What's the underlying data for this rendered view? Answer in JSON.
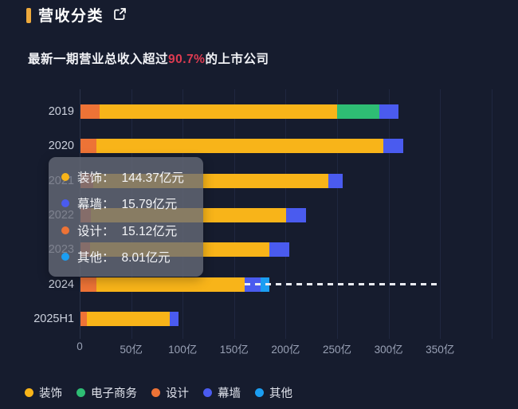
{
  "header": {
    "title": "营收分类",
    "title_icon": "external-link-icon",
    "accent_color": "#eda93c",
    "subtitle_prefix": "最新一期营业总收入超过",
    "subtitle_highlight": "90.7%",
    "subtitle_suffix": "的上市公司",
    "highlight_color": "#dd3b51"
  },
  "tooltip": {
    "items": [
      {
        "label": "装饰",
        "value": "144.37亿元",
        "color": "#f8b419"
      },
      {
        "label": "幕墙",
        "value": "15.79亿元",
        "color": "#4a5bef"
      },
      {
        "label": "设计",
        "value": "15.12亿元",
        "color": "#ed7336"
      },
      {
        "label": "其他",
        "value": "8.01亿元",
        "color": "#1b9ef2"
      }
    ]
  },
  "legend": {
    "items": [
      {
        "label": "装饰",
        "color": "#f8b419"
      },
      {
        "label": "电子商务",
        "color": "#2ebd74"
      },
      {
        "label": "设计",
        "color": "#ed7336"
      },
      {
        "label": "幕墙",
        "color": "#4a5bef"
      },
      {
        "label": "其他",
        "color": "#1b9ef2"
      }
    ]
  },
  "chart_data": {
    "type": "bar",
    "orientation": "horizontal",
    "stacked": true,
    "title": "营收分类",
    "unit": "亿元",
    "categories": [
      "2019",
      "2020",
      "2021",
      "2022",
      "2023",
      "2024",
      "2025H1"
    ],
    "series": [
      {
        "name": "设计",
        "color": "#ed7336",
        "values": [
          18.5,
          15.5,
          12,
          10,
          9,
          15.12,
          6
        ]
      },
      {
        "name": "装饰",
        "color": "#f8b419",
        "values": [
          231,
          279,
          229,
          190,
          174.5,
          144.37,
          80.5
        ]
      },
      {
        "name": "电子商务",
        "color": "#2ebd74",
        "values": [
          41,
          0,
          0,
          0,
          0,
          0,
          0
        ]
      },
      {
        "name": "幕墙",
        "color": "#4a5bef",
        "values": [
          18,
          19,
          14,
          19,
          19,
          15.79,
          8.5
        ]
      },
      {
        "name": "其他",
        "color": "#1b9ef2",
        "values": [
          0,
          0,
          0,
          0,
          0,
          8.01,
          0
        ]
      }
    ],
    "totals": [
      308.5,
      313.5,
      255,
      219,
      202.5,
      183.29,
      95
    ],
    "x_ticks": [
      "0",
      "50亿",
      "100亿",
      "150亿",
      "200亿",
      "250亿",
      "300亿",
      "350亿"
    ],
    "xlim": [
      0,
      400
    ],
    "grid": true,
    "legend_position": "bottom",
    "annotation": {
      "type": "dashed-line",
      "category": "2024",
      "to_value": 349
    }
  },
  "colors": {
    "background": "#161c2e",
    "gridline": "#1f2740",
    "axis_line": "#2b3249",
    "dash_line": "#e9ebf1",
    "year_label": "#ccd1dd",
    "tick_label": "#99a1b5",
    "legend_text": "#e0e3ec",
    "tooltip_bg": "rgba(104,107,121,0.78)"
  }
}
